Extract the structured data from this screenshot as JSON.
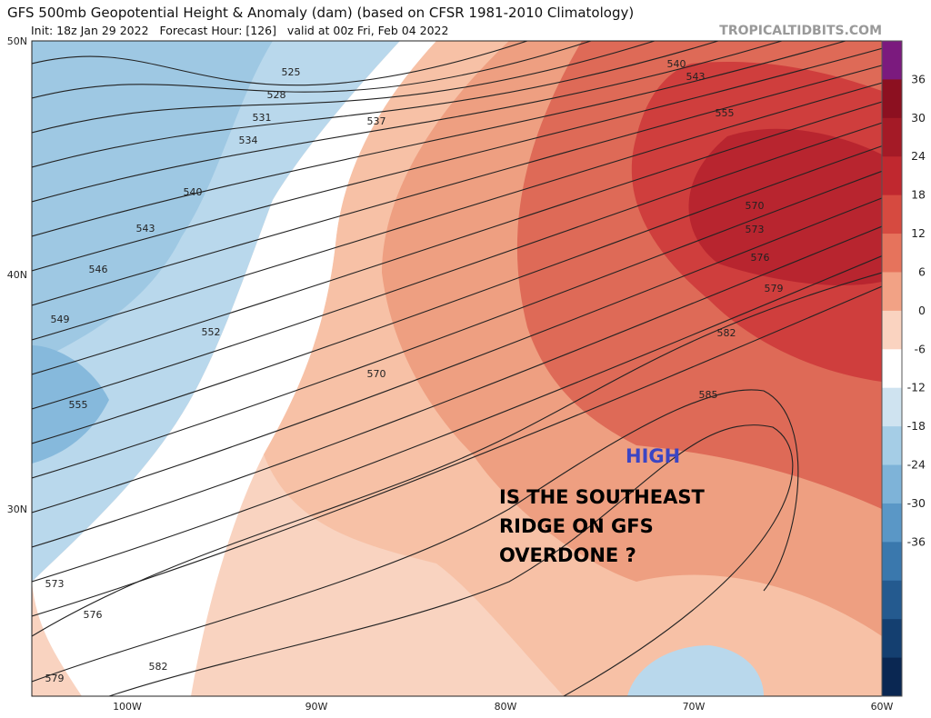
{
  "header": {
    "title": "GFS 500mb Geopotential Height & Anomaly (dam) (based on CFSR 1981-2010 Climatology)",
    "subtitle": "Init: 18z Jan 29 2022   Forecast Hour: [126]   valid at 00z Fri, Feb 04 2022",
    "source": "TROPICALTIDBITS.COM"
  },
  "map": {
    "lat_labels": [
      "50N",
      "40N",
      "30N"
    ],
    "lon_labels": [
      "100W",
      "90W",
      "80W",
      "70W",
      "60W"
    ],
    "contour_labels": [
      "525",
      "528",
      "531",
      "534",
      "537",
      "540",
      "543",
      "546",
      "549",
      "552",
      "555",
      "570",
      "540",
      "543",
      "555",
      "570",
      "573",
      "576",
      "579",
      "582",
      "585",
      "573",
      "576",
      "579",
      "582"
    ],
    "annotations": {
      "high": "HIGH",
      "question": [
        "IS THE SOUTHEAST",
        "RIDGE ON GFS",
        "OVERDONE ?"
      ]
    }
  },
  "colorbar": {
    "ticks": [
      "36",
      "30",
      "24",
      "18",
      "12",
      "6",
      "0",
      "-6",
      "-12",
      "-18",
      "-24",
      "-30",
      "-36"
    ]
  }
}
